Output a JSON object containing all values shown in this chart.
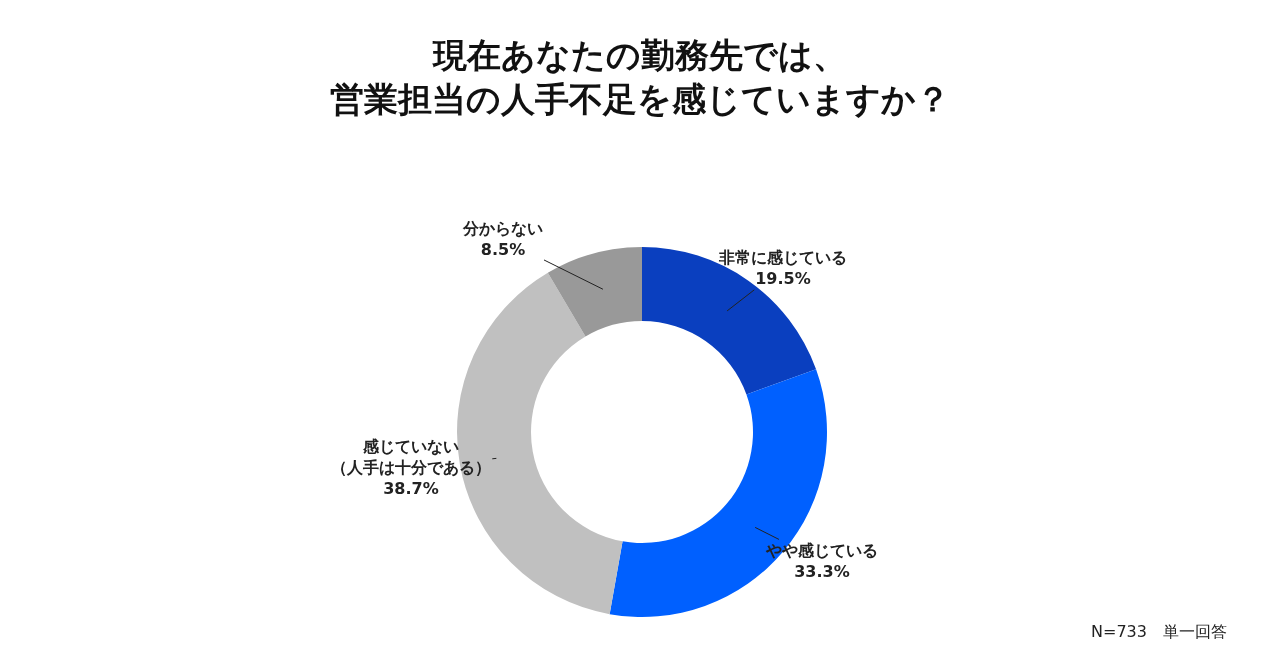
{
  "chart_data": {
    "type": "donut",
    "title": "現在あなたの勤務先では、営業担当の人手不足を感じていますか？",
    "categories": [
      "非常に感じている",
      "やや感じている",
      "感じていない（人手は十分である）",
      "分からない"
    ],
    "values": [
      19.5,
      33.3,
      38.7,
      8.5
    ],
    "value_labels": [
      "19.5%",
      "33.3%",
      "38.7%",
      "8.5%"
    ],
    "colors": [
      "#0a3fbf",
      "#0060ff",
      "#c0c0c0",
      "#999999"
    ],
    "annotations": [
      "N=733　単一回答"
    ],
    "legend": false
  }
}
